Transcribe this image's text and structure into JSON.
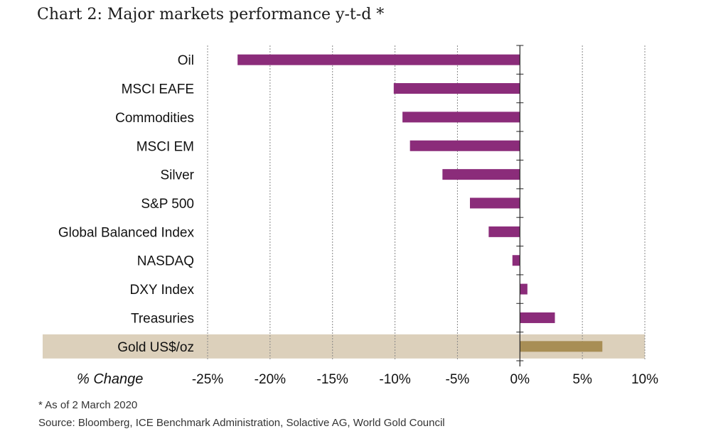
{
  "title": "Chart 2: Major markets performance y-t-d *",
  "footnote": "* As of 2 March 2020",
  "source": "Source: Bloomberg, ICE Benchmark Administration, Solactive AG, World Gold Council",
  "colors": {
    "bar": "#8b2c7a",
    "highlight_bar": "#a88e55",
    "highlight_band": "#dcd0bb",
    "grid": "#888888"
  },
  "chart_data": {
    "type": "bar",
    "orientation": "horizontal",
    "xlabel": "% Change",
    "xlim": [
      -25,
      10
    ],
    "xticks": [
      -25,
      -20,
      -15,
      -10,
      -5,
      0,
      5,
      10
    ],
    "xtick_labels": [
      "-25%",
      "-20%",
      "-15%",
      "-10%",
      "-5%",
      "0%",
      "5%",
      "10%"
    ],
    "grid": "vertical dashed",
    "categories": [
      "Oil",
      "MSCI EAFE",
      "Commodities",
      "MSCI EM",
      "Silver",
      "S&P 500",
      "Global Balanced Index",
      "NASDAQ",
      "DXY Index",
      "Treasuries",
      "Gold US$/oz"
    ],
    "values": [
      -22.6,
      -10.1,
      -9.4,
      -8.8,
      -6.2,
      -4.0,
      -2.5,
      -0.6,
      0.6,
      2.8,
      6.6
    ],
    "highlight": "Gold US$/oz"
  }
}
